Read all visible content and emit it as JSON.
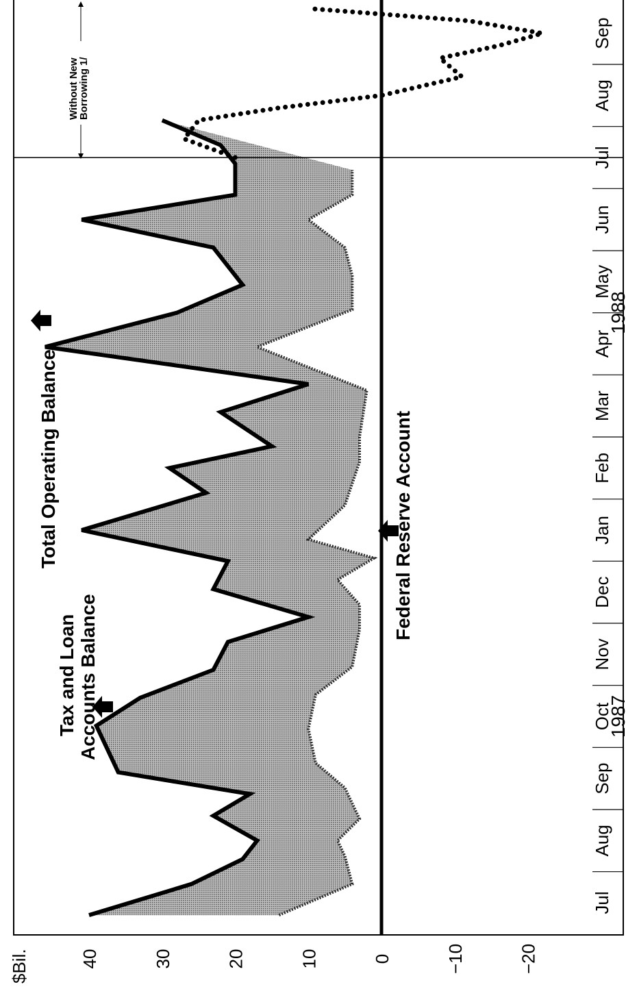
{
  "chart_data": {
    "type": "area",
    "orientation": "rotated-90-ccw",
    "ylabel": "$Bil.",
    "ylim": [
      -25,
      45
    ],
    "y_ticks": [
      40,
      30,
      20,
      10,
      0,
      -10,
      -20
    ],
    "y_tick_labels": [
      "40",
      "30",
      "20",
      "10",
      "0",
      "−10",
      "−20"
    ],
    "month_labels": [
      "Jul",
      "Aug",
      "Sep",
      "Oct",
      "Nov",
      "Dec",
      "Jan",
      "Feb",
      "Mar",
      "Apr",
      "May",
      "Jun",
      "Jul",
      "Aug",
      "Sep"
    ],
    "year_labels": [
      {
        "text": "1987",
        "month_index": 3
      },
      {
        "text": "1988",
        "month_index": 9.5
      }
    ],
    "x_range": [
      -0.2,
      14.5
    ],
    "projection_start": 12,
    "series": [
      {
        "name": "Total Operating Balance",
        "style": "solid",
        "x": [
          -0.2,
          0.3,
          0.7,
          1.0,
          1.4,
          1.75,
          2.1,
          2.85,
          3.3,
          3.75,
          4.2,
          4.6,
          5.05,
          5.5,
          6.0,
          6.6,
          7.0,
          7.35,
          7.9,
          8.35,
          8.95,
          9.5,
          9.95,
          10.55,
          11.0,
          11.4,
          11.9,
          12.2,
          12.6
        ],
        "values": [
          40,
          26,
          19,
          17,
          23,
          18,
          36,
          39,
          33,
          23,
          21,
          10,
          23,
          21,
          41,
          24,
          29,
          15,
          22,
          10,
          46,
          28,
          19,
          23,
          41,
          20,
          20,
          22,
          30
        ]
      },
      {
        "name": "Federal Reserve Account",
        "style": "dashed",
        "x": [
          -0.2,
          0.3,
          0.75,
          1.0,
          1.35,
          1.85,
          2.25,
          2.8,
          3.35,
          3.8,
          4.4,
          4.8,
          5.2,
          5.55,
          5.85,
          6.4,
          6.75,
          7.1,
          7.5,
          8.25,
          8.95,
          9.55,
          10.1,
          10.55,
          11.0,
          11.4,
          11.8
        ],
        "values": [
          14,
          4,
          5,
          6,
          3,
          5,
          9,
          10,
          9,
          4,
          3,
          3,
          6,
          1,
          10,
          5,
          4,
          3,
          3,
          2,
          17,
          4,
          4,
          5,
          10,
          4,
          4
        ]
      },
      {
        "name": "Without New Borrowing",
        "style": "dotted",
        "x": [
          12.0,
          12.3,
          12.6,
          12.8,
          13.0,
          13.3,
          13.6,
          13.8,
          14.0,
          14.2,
          14.4
        ],
        "values": [
          20,
          27,
          25,
          14,
          0,
          -11,
          -8,
          -16,
          -22,
          -12,
          10
        ]
      }
    ],
    "annotations": {
      "tax_loan_line1": "Tax and Loan",
      "tax_loan_line2": "Accounts Balance",
      "total_operating": "Total Operating Balance",
      "federal_reserve": "Federal Reserve Account",
      "without_borrowing_line1": "Without New",
      "without_borrowing_line2": "Borrowing 1/"
    },
    "grid": false,
    "zero_line": true
  }
}
